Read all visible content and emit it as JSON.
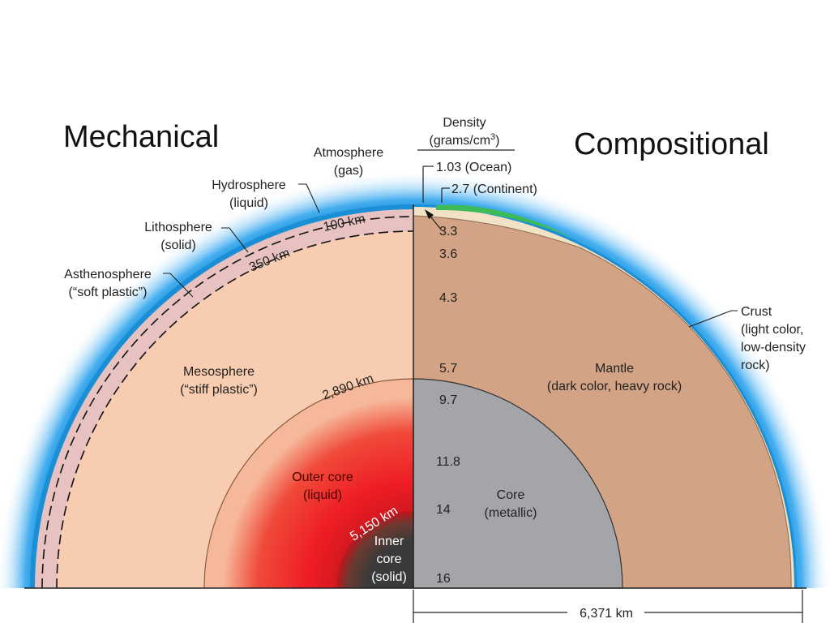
{
  "titles": {
    "left": "Mechanical",
    "right": "Compositional"
  },
  "density": {
    "header_line1": "Density",
    "header_line2": "(grams/cm",
    "header_sup": "3",
    "header_close": ")",
    "ocean": "1.03 (Ocean)",
    "continent": "2.7 (Continent)",
    "values": [
      "3.3",
      "3.6",
      "4.3",
      "5.7",
      "9.7",
      "11.8",
      "14",
      "16"
    ]
  },
  "mechanical": {
    "atmosphere": [
      "Atmosphere",
      "(gas)"
    ],
    "hydrosphere": [
      "Hydrosphere",
      "(liquid)"
    ],
    "lithosphere": [
      "Lithosphere",
      "(solid)"
    ],
    "asthenosphere": [
      "Asthenosphere",
      "(“soft plastic”)"
    ],
    "mesosphere": [
      "Mesosphere",
      "(“stiff plastic”)"
    ],
    "outer_core": [
      "Outer core",
      "(liquid)"
    ],
    "inner_core": [
      "Inner",
      "core",
      "(solid)"
    ]
  },
  "compositional": {
    "crust": [
      "Crust",
      "(light color,",
      "low-density",
      "rock)"
    ],
    "mantle": [
      "Mantle",
      "(dark color, heavy rock)"
    ],
    "core": [
      "Core",
      "(metallic)"
    ]
  },
  "depths": {
    "d100": "100 km",
    "d350": "350 km",
    "d2890": "2,890 km",
    "d5150": "5,150 km",
    "radius": "6,371 km"
  },
  "colors": {
    "atmosphere": "#4fb7ec",
    "hydrosphere": "#1b8fd6",
    "lithosphere": "#e7c2c0",
    "mesosphere": "#f8ccb0",
    "outer_core": "#ee1c24",
    "inner_core": "#3b3b3b",
    "mantle": "#d2a384",
    "crust": "#f1e2c6",
    "continent": "#3dbb5b",
    "metal_core": "#a3a5a8"
  }
}
